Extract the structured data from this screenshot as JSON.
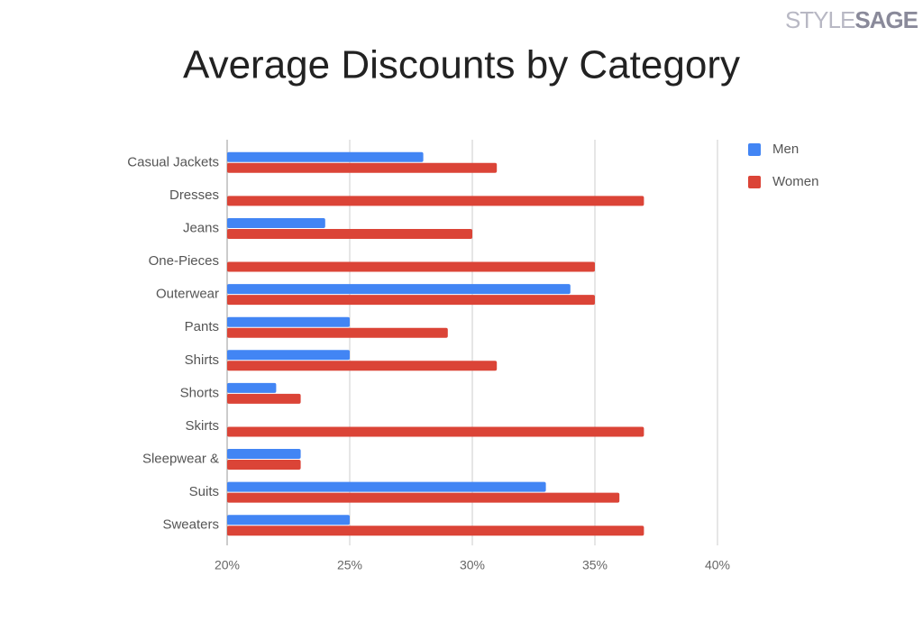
{
  "logo_text": [
    "STYLE",
    "SAGE"
  ],
  "chart_data": {
    "type": "hbar",
    "title": "Average Discounts by Category",
    "categories": [
      "Casual Jackets",
      "Dresses",
      "Jeans",
      "One-Pieces",
      "Outerwear",
      "Pants",
      "Shirts",
      "Shorts",
      "Skirts",
      "Sleepwear &",
      "Suits",
      "Sweaters"
    ],
    "series": [
      {
        "name": "Men",
        "color": "#4285f4",
        "values": [
          28,
          null,
          24,
          null,
          34,
          25,
          25,
          22,
          null,
          23,
          33,
          25
        ]
      },
      {
        "name": "Women",
        "color": "#db4437",
        "values": [
          31,
          37,
          30,
          35,
          35,
          29,
          31,
          23,
          37,
          23,
          36,
          37
        ]
      }
    ],
    "xlim": [
      20,
      40
    ],
    "xticks": [
      {
        "value": 20,
        "label": "20%"
      },
      {
        "value": 25,
        "label": "25%"
      },
      {
        "value": 30,
        "label": "30%"
      },
      {
        "value": 35,
        "label": "35%"
      },
      {
        "value": 40,
        "label": "40%"
      }
    ],
    "grid": true,
    "legend": "right"
  }
}
